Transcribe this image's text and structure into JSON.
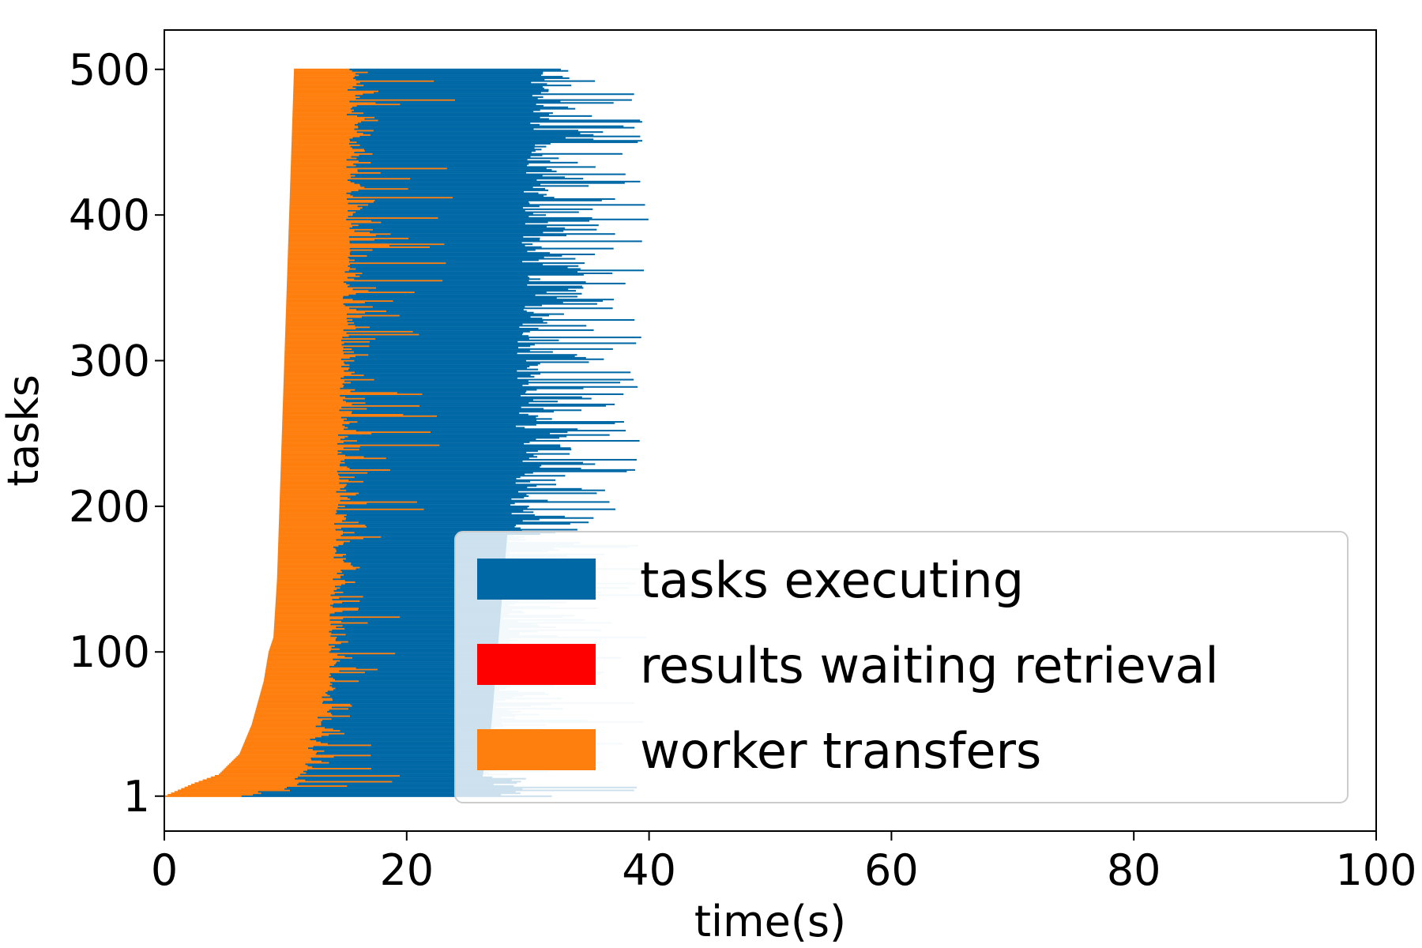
{
  "chart_data": {
    "type": "bar",
    "subtype": "horizontal-stacked-timeline",
    "title": "",
    "xlabel": "time(s)",
    "ylabel": "tasks",
    "xlim": [
      0,
      100
    ],
    "ylim": [
      -23,
      527
    ],
    "x_ticks": [
      0,
      20,
      40,
      60,
      80,
      100
    ],
    "y_ticks": [
      1,
      100,
      200,
      300,
      400,
      500
    ],
    "grid": false,
    "legend_position": "lower-right",
    "colors": {
      "tasks executing": "#0068a5",
      "results waiting retrieval": "#ff0000",
      "worker transfers": "#ff7f0e",
      "executing_tail_upper": "#0068a5",
      "executing_tail_lower": "#c9dfea"
    },
    "series": [
      {
        "name": "worker transfers",
        "color": "#ff7f0e"
      },
      {
        "name": "tasks executing",
        "color": "#0068a5"
      },
      {
        "name": "results waiting retrieval",
        "color": "#ff0000"
      }
    ],
    "task_count": 500,
    "start_profile": {
      "tasks": [
        1,
        10,
        16,
        30,
        50,
        65,
        80,
        100,
        110,
        150,
        200,
        250,
        300,
        350,
        400,
        450,
        500
      ],
      "start_time": [
        0,
        2.5,
        4.5,
        6.2,
        7.2,
        7.7,
        8.2,
        8.6,
        9.0,
        9.3,
        9.5,
        9.7,
        9.9,
        10.1,
        10.3,
        10.5,
        10.7
      ]
    },
    "transfer_end_profile": {
      "tasks": [
        1,
        10,
        50,
        100,
        200,
        300,
        400,
        500
      ],
      "time": [
        6.0,
        10.5,
        12.5,
        13.5,
        14.0,
        14.5,
        15.0,
        15.0
      ]
    },
    "execution_end_profile": {
      "tasks": [
        1,
        50,
        100,
        150,
        200,
        250,
        300,
        350,
        400,
        450,
        500
      ],
      "time": [
        26.0,
        27.0,
        27.5,
        28.0,
        28.5,
        29.0,
        29.0,
        29.5,
        29.5,
        30.0,
        30.0
      ]
    },
    "execution_end_max": 40
  },
  "legend": {
    "items": [
      {
        "label": "tasks executing",
        "color": "#0068a5"
      },
      {
        "label": "results waiting retrieval",
        "color": "#ff0000"
      },
      {
        "label": "worker transfers",
        "color": "#ff7f0e"
      }
    ]
  }
}
